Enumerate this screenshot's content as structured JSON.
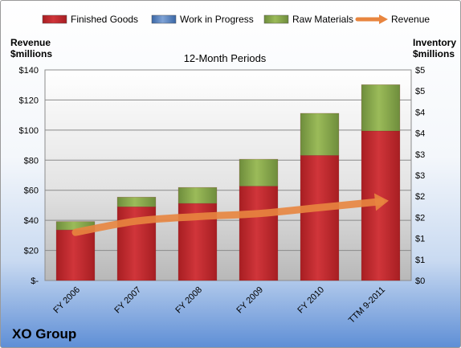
{
  "company": "XO Group",
  "chart_data": {
    "type": "bar",
    "title": "12-Month Periods",
    "categories": [
      "FY 2006",
      "FY 2007",
      "FY 2008",
      "FY 2009",
      "FY 2010",
      "TTM 9-2011"
    ],
    "stacked": true,
    "series": [
      {
        "name": "Finished Goods",
        "axis": "right",
        "color": "#c0272d",
        "values": [
          1.2,
          1.75,
          1.83,
          2.24,
          2.97,
          3.55
        ]
      },
      {
        "name": "Work in Progress",
        "axis": "right",
        "color": "#4f81bd",
        "values": [
          0,
          0,
          0,
          0,
          0,
          0
        ]
      },
      {
        "name": "Raw Materials",
        "axis": "right",
        "color": "#9bbb59",
        "values": [
          0.2,
          0.23,
          0.38,
          0.64,
          1.0,
          1.1
        ]
      },
      {
        "name": "Revenue",
        "axis": "left",
        "type": "line",
        "color": "#e8853f",
        "values": [
          32,
          39.5,
          42.5,
          44.5,
          48.5,
          52.5
        ]
      }
    ],
    "ylabel_left": "Revenue $millions",
    "ylabel_right": "Inventory $millions",
    "y_left": {
      "ylim": [
        0,
        140
      ],
      "ticks": [
        "$-",
        "$20",
        "$40",
        "$60",
        "$80",
        "$100",
        "$120",
        "$140"
      ]
    },
    "y_right": {
      "ylim": [
        0,
        5
      ],
      "ticks": [
        "$0",
        "$1",
        "$1",
        "$2",
        "$2",
        "$3",
        "$3",
        "$4",
        "$4",
        "$5",
        "$5"
      ]
    },
    "grid": true,
    "legend_position": "top"
  }
}
